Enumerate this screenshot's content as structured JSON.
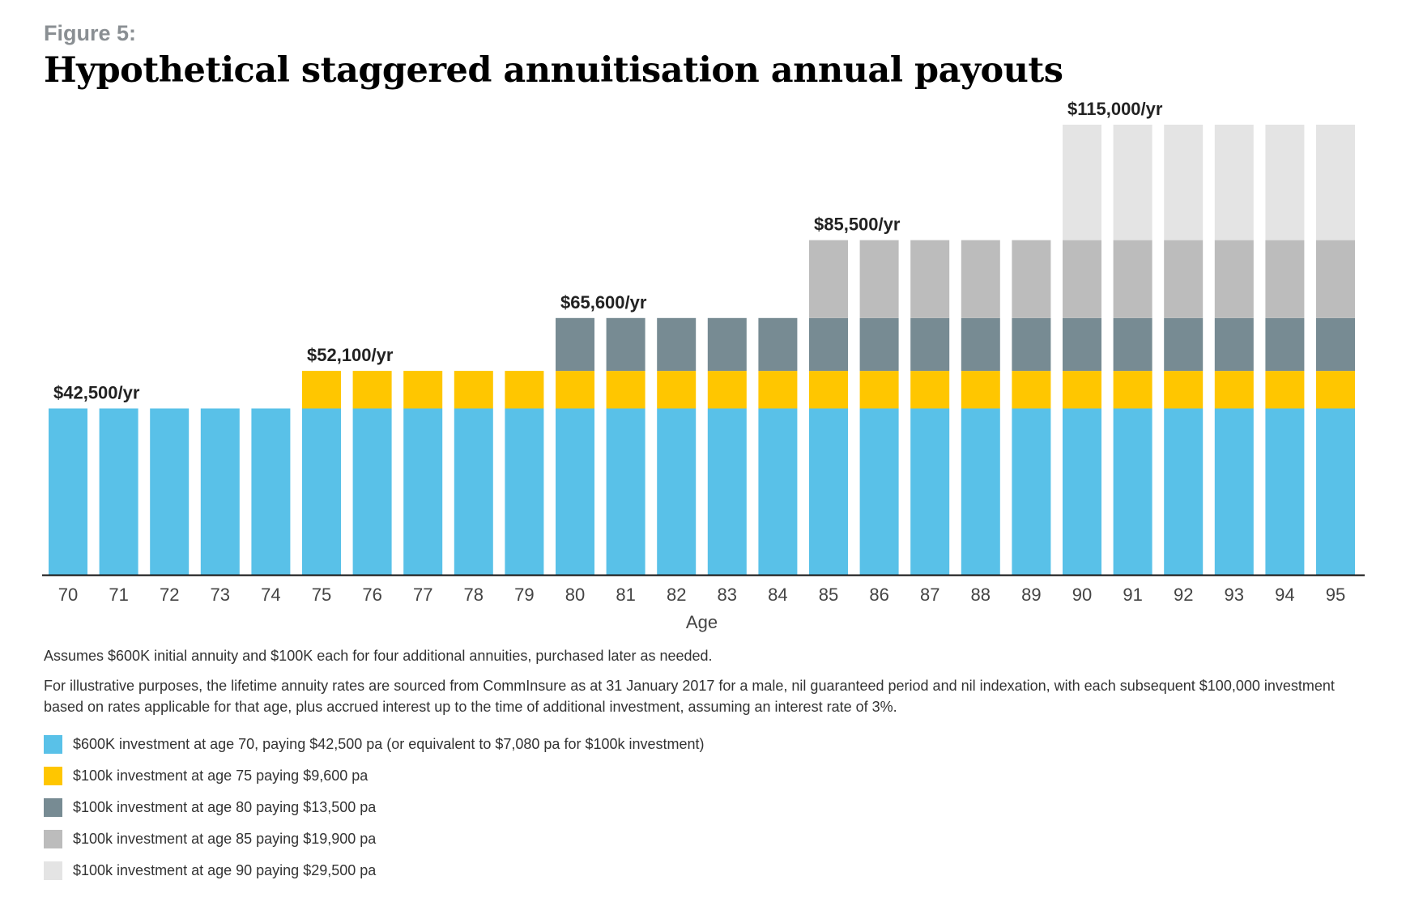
{
  "figure_label": "Figure 5:",
  "title": "Hypothetical staggered annuitisation annual payouts",
  "notes": {
    "assumption": "Assumes $600K initial annuity and $100K each for four additional annuities, purchased later as needed.",
    "disclaimer": "For illustrative purposes, the lifetime annuity rates are sourced from CommInsure as at 31 January 2017 for a male, nil guaranteed period and nil indexation, with each subsequent $100,000 investment based on rates applicable for that age, plus accrued interest up to the time of additional investment, assuming an interest rate of 3%."
  },
  "legend": [
    {
      "label": "$600K investment at age 70, paying $42,500 pa (or equivalent to $7,080 pa for $100k investment)",
      "color": "#59c1e8"
    },
    {
      "label": "$100k investment at age 75 paying $9,600 pa",
      "color": "#ffc600"
    },
    {
      "label": "$100k investment at age 80 paying $13,500 pa",
      "color": "#778b93"
    },
    {
      "label": "$100k investment at age 85 paying $19,900 pa",
      "color": "#bcbcbc"
    },
    {
      "label": "$100k investment at age 90 paying $29,500 pa",
      "color": "#e4e4e4"
    }
  ],
  "chart_data": {
    "type": "bar",
    "stacked": true,
    "title": "Hypothetical staggered annuitisation annual payouts",
    "xlabel": "Age",
    "ylabel": "",
    "ylim": [
      0,
      115000
    ],
    "grid": false,
    "categories": [
      "70",
      "71",
      "72",
      "73",
      "74",
      "75",
      "76",
      "77",
      "78",
      "79",
      "80",
      "81",
      "82",
      "83",
      "84",
      "85",
      "86",
      "87",
      "88",
      "89",
      "90",
      "91",
      "92",
      "93",
      "94",
      "95"
    ],
    "series": [
      {
        "name": "$600K investment at age 70",
        "color": "#59c1e8",
        "values": [
          42500,
          42500,
          42500,
          42500,
          42500,
          42500,
          42500,
          42500,
          42500,
          42500,
          42500,
          42500,
          42500,
          42500,
          42500,
          42500,
          42500,
          42500,
          42500,
          42500,
          42500,
          42500,
          42500,
          42500,
          42500,
          42500
        ]
      },
      {
        "name": "$100k investment at age 75",
        "color": "#ffc600",
        "values": [
          0,
          0,
          0,
          0,
          0,
          9600,
          9600,
          9600,
          9600,
          9600,
          9600,
          9600,
          9600,
          9600,
          9600,
          9600,
          9600,
          9600,
          9600,
          9600,
          9600,
          9600,
          9600,
          9600,
          9600,
          9600
        ]
      },
      {
        "name": "$100k investment at age 80",
        "color": "#778b93",
        "values": [
          0,
          0,
          0,
          0,
          0,
          0,
          0,
          0,
          0,
          0,
          13500,
          13500,
          13500,
          13500,
          13500,
          13500,
          13500,
          13500,
          13500,
          13500,
          13500,
          13500,
          13500,
          13500,
          13500,
          13500
        ]
      },
      {
        "name": "$100k investment at age 85",
        "color": "#bcbcbc",
        "values": [
          0,
          0,
          0,
          0,
          0,
          0,
          0,
          0,
          0,
          0,
          0,
          0,
          0,
          0,
          0,
          19900,
          19900,
          19900,
          19900,
          19900,
          19900,
          19900,
          19900,
          19900,
          19900,
          19900
        ]
      },
      {
        "name": "$100k investment at age 90",
        "color": "#e4e4e4",
        "values": [
          0,
          0,
          0,
          0,
          0,
          0,
          0,
          0,
          0,
          0,
          0,
          0,
          0,
          0,
          0,
          0,
          0,
          0,
          0,
          0,
          29500,
          29500,
          29500,
          29500,
          29500,
          29500
        ]
      }
    ],
    "annotations": [
      {
        "text": "$42,500/yr",
        "category": "70"
      },
      {
        "text": "$52,100/yr",
        "category": "75"
      },
      {
        "text": "$65,600/yr",
        "category": "80"
      },
      {
        "text": "$85,500/yr",
        "category": "85"
      },
      {
        "text": "$115,000/yr",
        "category": "90"
      }
    ]
  }
}
